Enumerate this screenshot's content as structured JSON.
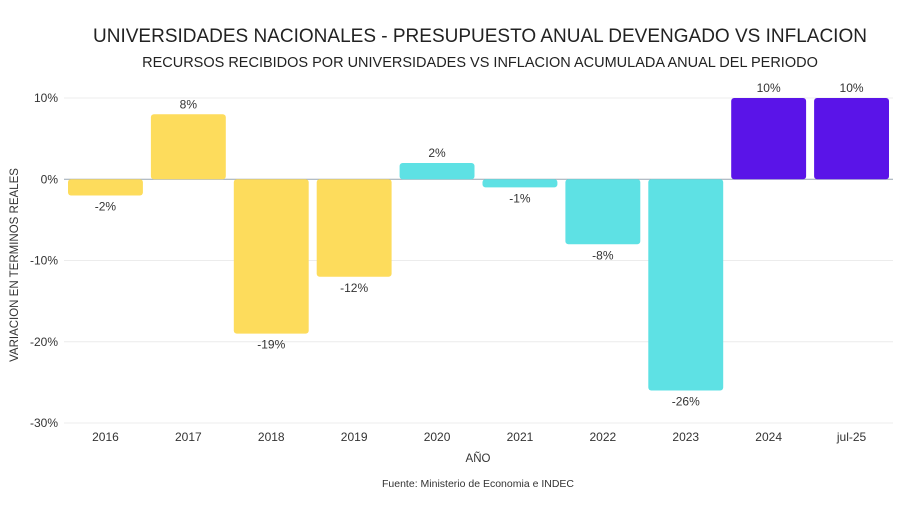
{
  "chart_data": {
    "type": "bar",
    "title": "UNIVERSIDADES NACIONALES - PRESUPUESTO ANUAL DEVENGADO VS INFLACION",
    "subtitle": "RECURSOS RECIBIDOS POR UNIVERSIDADES VS INFLACION ACUMULADA ANUAL DEL PERIODO",
    "xlabel": "AÑO",
    "ylabel": "VARIACION EN TERMINOS REALES",
    "source": "Fuente: Ministerio de Economia e INDEC",
    "categories": [
      "2016",
      "2017",
      "2018",
      "2019",
      "2020",
      "2021",
      "2022",
      "2023",
      "2024",
      "jul-25"
    ],
    "values": [
      -2,
      8,
      -19,
      -12,
      2,
      -1,
      -8,
      -26,
      10,
      10
    ],
    "data_labels": [
      "-2%",
      "8%",
      "-19%",
      "-12%",
      "2%",
      "-1%",
      "-8%",
      "-26%",
      "10%",
      "10%"
    ],
    "bar_colors": [
      "#FDDC5C",
      "#FDDC5C",
      "#FDDC5C",
      "#FDDC5C",
      "#5EE1E4",
      "#5EE1E4",
      "#5EE1E4",
      "#5EE1E4",
      "#5A14E8",
      "#5A14E8"
    ],
    "ylim": [
      -30,
      10
    ],
    "yticks": [
      10,
      0,
      -10,
      -20,
      -30
    ],
    "ytick_labels": [
      "10%",
      "0%",
      "-10%",
      "-20%",
      "-30%"
    ],
    "grid": true,
    "legend": "none"
  }
}
